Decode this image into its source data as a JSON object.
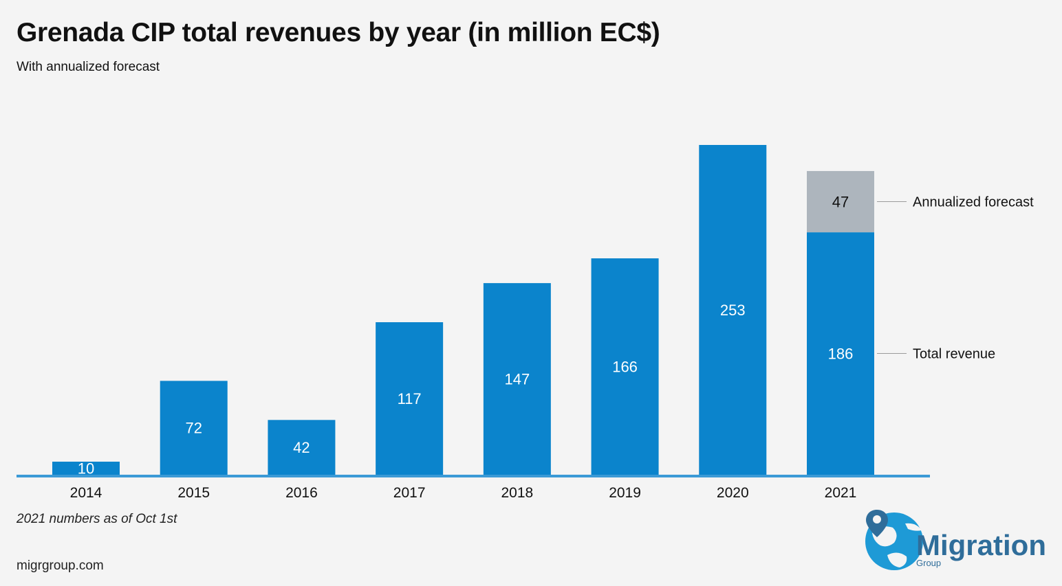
{
  "page": {
    "title": "Grenada CIP total revenues by year (in million EC$)",
    "subtitle": "With annualized forecast",
    "footnote": "2021 numbers as of Oct 1st",
    "source": "migrgroup.com"
  },
  "logo": {
    "name": "Migration",
    "sub": "Group",
    "icon": "globe-pin-icon"
  },
  "colors": {
    "revenue": "#0b84cc",
    "forecast": "#adb5bd",
    "axis": "#3b9ad6",
    "leader": "#9a9a9a",
    "logo_text": "#2f6d9a",
    "logo_globe": "#1e9ad6"
  },
  "chart_data": {
    "type": "bar",
    "stacked": true,
    "title": "Grenada CIP total revenues by year (in million EC$)",
    "subtitle": "With annualized forecast",
    "categories": [
      "2014",
      "2015",
      "2016",
      "2017",
      "2018",
      "2019",
      "2020",
      "2021"
    ],
    "series": [
      {
        "name": "Total revenue",
        "values": [
          10,
          72,
          42,
          117,
          147,
          166,
          253,
          186
        ]
      },
      {
        "name": "Annualized forecast",
        "values": [
          0,
          0,
          0,
          0,
          0,
          0,
          0,
          47
        ]
      }
    ],
    "series_labels": [
      "Annualized forecast",
      "Total revenue"
    ],
    "xlabel": "",
    "ylabel": "",
    "ylim": [
      0,
      253
    ],
    "grid": false,
    "legend": "right, direct labels"
  }
}
